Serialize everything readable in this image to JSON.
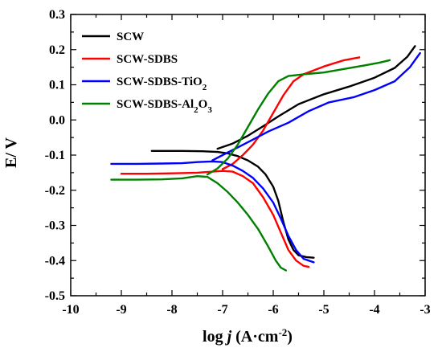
{
  "chart_data": {
    "type": "line",
    "xlabel_parts": [
      "log ",
      "j",
      "  (A·cm",
      "-2",
      ")"
    ],
    "ylabel": "E/ V",
    "xlim": [
      -10,
      -3
    ],
    "ylim": [
      -0.5,
      0.3
    ],
    "x_ticks": [
      "-10",
      "-9",
      "-8",
      "-7",
      "-6",
      "-5",
      "-4",
      "-3"
    ],
    "y_ticks": [
      "0.3",
      "0.2",
      "0.1",
      "0.0",
      "-0.1",
      "-0.2",
      "-0.3",
      "-0.4",
      "-0.5"
    ],
    "grid": false,
    "legend_position": "top-left",
    "legend": [
      {
        "text": "SCW",
        "color": "#000000"
      },
      {
        "text": "SCW-SDBS",
        "color": "#ff0000"
      },
      {
        "text": "SCW-SDBS-TiO",
        "sub": "2",
        "tail": "",
        "color": "#0000ff"
      },
      {
        "text": "SCW-SDBS-Al",
        "sub": "2",
        "tail": "O",
        "sub2": "3",
        "color": "#008000"
      }
    ],
    "series": [
      {
        "name": "SCW",
        "color": "#000000",
        "points": [
          [
            -8.4,
            -0.088
          ],
          [
            -7.8,
            -0.088
          ],
          [
            -7.4,
            -0.089
          ],
          [
            -7.1,
            -0.091
          ],
          [
            -6.9,
            -0.095
          ],
          [
            -6.7,
            -0.103
          ],
          [
            -6.5,
            -0.115
          ],
          [
            -6.3,
            -0.133
          ],
          [
            -6.15,
            -0.155
          ],
          [
            -6.0,
            -0.19
          ],
          [
            -5.9,
            -0.23
          ],
          [
            -5.8,
            -0.29
          ],
          [
            -5.7,
            -0.34
          ],
          [
            -5.6,
            -0.37
          ],
          [
            -5.5,
            -0.385
          ],
          [
            -5.35,
            -0.39
          ],
          [
            -5.2,
            -0.392
          ],
          [
            -7.1,
            -0.082
          ],
          [
            -6.8,
            -0.067
          ],
          [
            -6.5,
            -0.045
          ],
          [
            -6.2,
            -0.018
          ],
          [
            -5.9,
            0.01
          ],
          [
            -5.5,
            0.045
          ],
          [
            -5.0,
            0.073
          ],
          [
            -4.5,
            0.095
          ],
          [
            -4.0,
            0.12
          ],
          [
            -3.6,
            0.148
          ],
          [
            -3.35,
            0.18
          ],
          [
            -3.2,
            0.21
          ]
        ]
      },
      {
        "name": "SCW-SDBS",
        "color": "#ff0000",
        "points": [
          [
            -9.0,
            -0.153
          ],
          [
            -8.5,
            -0.153
          ],
          [
            -8.0,
            -0.152
          ],
          [
            -7.5,
            -0.15
          ],
          [
            -7.2,
            -0.147
          ],
          [
            -7.0,
            -0.145
          ],
          [
            -6.8,
            -0.147
          ],
          [
            -6.6,
            -0.16
          ],
          [
            -6.4,
            -0.18
          ],
          [
            -6.2,
            -0.22
          ],
          [
            -6.0,
            -0.27
          ],
          [
            -5.85,
            -0.32
          ],
          [
            -5.7,
            -0.37
          ],
          [
            -5.55,
            -0.4
          ],
          [
            -5.4,
            -0.415
          ],
          [
            -5.3,
            -0.418
          ],
          [
            -7.0,
            -0.14
          ],
          [
            -6.8,
            -0.125
          ],
          [
            -6.6,
            -0.1
          ],
          [
            -6.4,
            -0.07
          ],
          [
            -6.2,
            -0.03
          ],
          [
            -6.0,
            0.02
          ],
          [
            -5.8,
            0.07
          ],
          [
            -5.6,
            0.11
          ],
          [
            -5.4,
            0.13
          ],
          [
            -5.0,
            0.152
          ],
          [
            -4.6,
            0.17
          ],
          [
            -4.3,
            0.178
          ]
        ]
      },
      {
        "name": "SCW-SDBS-TiO2",
        "color": "#0000ff",
        "points": [
          [
            -9.2,
            -0.125
          ],
          [
            -8.7,
            -0.125
          ],
          [
            -8.2,
            -0.124
          ],
          [
            -7.8,
            -0.123
          ],
          [
            -7.5,
            -0.12
          ],
          [
            -7.2,
            -0.118
          ],
          [
            -7.0,
            -0.12
          ],
          [
            -6.8,
            -0.13
          ],
          [
            -6.6,
            -0.145
          ],
          [
            -6.4,
            -0.165
          ],
          [
            -6.2,
            -0.195
          ],
          [
            -6.0,
            -0.235
          ],
          [
            -5.85,
            -0.28
          ],
          [
            -5.7,
            -0.33
          ],
          [
            -5.55,
            -0.37
          ],
          [
            -5.4,
            -0.395
          ],
          [
            -5.2,
            -0.405
          ],
          [
            -7.2,
            -0.115
          ],
          [
            -7.0,
            -0.1
          ],
          [
            -6.7,
            -0.078
          ],
          [
            -6.4,
            -0.056
          ],
          [
            -6.1,
            -0.033
          ],
          [
            -5.7,
            -0.008
          ],
          [
            -5.3,
            0.025
          ],
          [
            -4.9,
            0.05
          ],
          [
            -4.4,
            0.065
          ],
          [
            -4.0,
            0.085
          ],
          [
            -3.6,
            0.11
          ],
          [
            -3.3,
            0.15
          ],
          [
            -3.1,
            0.19
          ]
        ]
      },
      {
        "name": "SCW-SDBS-Al2O3",
        "color": "#008000",
        "points": [
          [
            -9.2,
            -0.17
          ],
          [
            -8.7,
            -0.17
          ],
          [
            -8.2,
            -0.169
          ],
          [
            -7.8,
            -0.166
          ],
          [
            -7.5,
            -0.16
          ],
          [
            -7.3,
            -0.162
          ],
          [
            -7.1,
            -0.18
          ],
          [
            -6.9,
            -0.205
          ],
          [
            -6.7,
            -0.235
          ],
          [
            -6.5,
            -0.27
          ],
          [
            -6.3,
            -0.31
          ],
          [
            -6.1,
            -0.36
          ],
          [
            -5.95,
            -0.4
          ],
          [
            -5.85,
            -0.42
          ],
          [
            -5.75,
            -0.428
          ],
          [
            -7.3,
            -0.155
          ],
          [
            -7.1,
            -0.138
          ],
          [
            -6.9,
            -0.11
          ],
          [
            -6.7,
            -0.07
          ],
          [
            -6.5,
            -0.02
          ],
          [
            -6.3,
            0.03
          ],
          [
            -6.1,
            0.075
          ],
          [
            -5.9,
            0.11
          ],
          [
            -5.7,
            0.125
          ],
          [
            -5.4,
            0.13
          ],
          [
            -5.0,
            0.135
          ],
          [
            -4.6,
            0.145
          ],
          [
            -4.2,
            0.155
          ],
          [
            -3.9,
            0.163
          ],
          [
            -3.7,
            0.17
          ]
        ]
      }
    ]
  }
}
